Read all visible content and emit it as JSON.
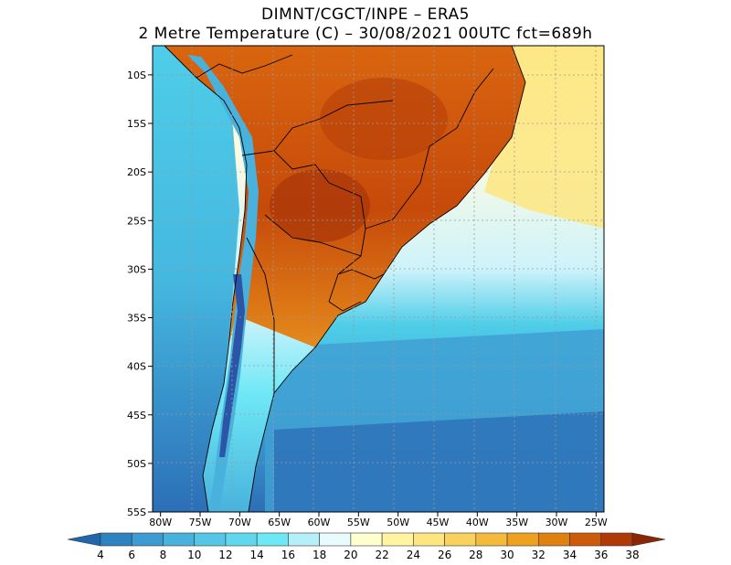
{
  "title": {
    "line1": "DIMNT/CGCT/INPE  –   ERA5",
    "line2": "2 Metre Temperature (C)  –    30/08/2021 00UTC fct=689h"
  },
  "map": {
    "lon_range": [
      -81,
      -24
    ],
    "lat_range": [
      -55,
      -7
    ],
    "lat_ticks": [
      {
        "value": -10,
        "label": "10S"
      },
      {
        "value": -15,
        "label": "15S"
      },
      {
        "value": -20,
        "label": "20S"
      },
      {
        "value": -25,
        "label": "25S"
      },
      {
        "value": -30,
        "label": "30S"
      },
      {
        "value": -35,
        "label": "35S"
      },
      {
        "value": -40,
        "label": "40S"
      },
      {
        "value": -45,
        "label": "45S"
      },
      {
        "value": -50,
        "label": "50S"
      },
      {
        "value": -55,
        "label": "55S"
      }
    ],
    "lon_ticks": [
      {
        "value": -80,
        "label": "80W"
      },
      {
        "value": -75,
        "label": "75W"
      },
      {
        "value": -70,
        "label": "70W"
      },
      {
        "value": -65,
        "label": "65W"
      },
      {
        "value": -60,
        "label": "60W"
      },
      {
        "value": -55,
        "label": "55W"
      },
      {
        "value": -50,
        "label": "50W"
      },
      {
        "value": -45,
        "label": "45W"
      },
      {
        "value": -40,
        "label": "40W"
      },
      {
        "value": -35,
        "label": "35W"
      },
      {
        "value": -30,
        "label": "30W"
      },
      {
        "value": -25,
        "label": "25W"
      }
    ],
    "colors": {
      "ocean_far": "#2c6fb7",
      "ocean_mid": "#3fa0d4",
      "ocean_cool": "#4ecde8",
      "ocean_light": "#cdf3fb",
      "ocean_warm": "#fffbe0",
      "ocean_yellow": "#fff0a0",
      "land_hot": "#c64a0a",
      "land_warm": "#e07f18",
      "land_mild": "#f0b040",
      "andes_cold": "#2c55a8"
    }
  },
  "colorbar": {
    "labels": [
      "4",
      "6",
      "8",
      "10",
      "12",
      "14",
      "16",
      "18",
      "20",
      "22",
      "24",
      "26",
      "28",
      "30",
      "32",
      "34",
      "36",
      "38"
    ],
    "colors": [
      "#2166ac",
      "#2f82c0",
      "#3c9bd0",
      "#48b2dc",
      "#55c6e6",
      "#5fd8ee",
      "#6fe8f6",
      "#b5f0fa",
      "#e8fbfe",
      "#ffffd0",
      "#fff5a0",
      "#fde680",
      "#f9d25e",
      "#f4ba3c",
      "#eea020",
      "#e08010",
      "#cc5a08",
      "#b03a05",
      "#8a2604"
    ]
  }
}
